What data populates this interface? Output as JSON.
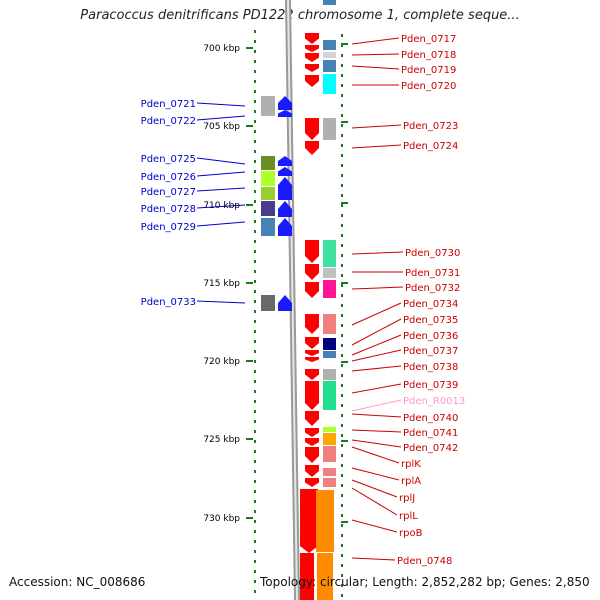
{
  "title": "Paracoccus denitrificans PD1222 chromosome 1, complete seque...",
  "accession": "Accession: NC_008686",
  "topology": "Topology: circular; Length: 2,852,282 bp; Genes: 2,850",
  "colors": {
    "left_label": "#0000cc",
    "right_label": "#cc0000",
    "rna_label": "#ff99cc",
    "forward_gene": "#1a1aff",
    "reverse_gene": "#ff0000",
    "tick": "#1a7a1a"
  },
  "kbp_ticks": [
    "700 kbp",
    "705 kbp",
    "710 kbp",
    "715 kbp",
    "720 kbp",
    "725 kbp",
    "730 kbp"
  ],
  "left_genes": [
    {
      "name": "Pden_0721",
      "color": "#b0b0b0"
    },
    {
      "name": "Pden_0722",
      "color": "#b0b0b0"
    },
    {
      "name": "Pden_0725",
      "color": "#6b8e23"
    },
    {
      "name": "Pden_0726",
      "color": "#adff2f"
    },
    {
      "name": "Pden_0727",
      "color": "#9acd32"
    },
    {
      "name": "Pden_0728",
      "color": "#483d8b"
    },
    {
      "name": "Pden_0729",
      "color": "#4682b4"
    },
    {
      "name": "Pden_0733",
      "color": "#696969"
    }
  ],
  "right_genes": [
    {
      "name": "Pden_0717",
      "color": "#4682b4"
    },
    {
      "name": "Pden_0718",
      "color": "#d3d3d3"
    },
    {
      "name": "Pden_0719",
      "color": "#4682b4"
    },
    {
      "name": "Pden_0720",
      "color": "#00ffff"
    },
    {
      "name": "Pden_0723",
      "color": "#b0b0b0"
    },
    {
      "name": "Pden_0724",
      "color": "#ff0000"
    },
    {
      "name": "Pden_0730",
      "color": "#40e0a0"
    },
    {
      "name": "Pden_0731",
      "color": "#c0c0c0"
    },
    {
      "name": "Pden_0732",
      "color": "#ff1493"
    },
    {
      "name": "Pden_0734",
      "color": "#f08080"
    },
    {
      "name": "Pden_0735",
      "color": "#f08080"
    },
    {
      "name": "Pden_0736",
      "color": "#000080"
    },
    {
      "name": "Pden_0737",
      "color": "#4682b4"
    },
    {
      "name": "Pden_0738",
      "color": "#b0b0b0"
    },
    {
      "name": "Pden_0739",
      "color": "#20e090"
    },
    {
      "name": "Pden_R0013",
      "color": "#ff99cc"
    },
    {
      "name": "Pden_0740",
      "color": "#f08080"
    },
    {
      "name": "Pden_0741",
      "color": "#adff2f"
    },
    {
      "name": "Pden_0742",
      "color": "#ffa500"
    },
    {
      "name": "rplK",
      "color": "#f08080"
    },
    {
      "name": "rplA",
      "color": "#f08080"
    },
    {
      "name": "rplJ",
      "color": "#f08080"
    },
    {
      "name": "rplL",
      "color": "#f08080"
    },
    {
      "name": "rpoB",
      "color": "#ff8c00"
    },
    {
      "name": "Pden_0748",
      "color": "#ff8c00"
    }
  ]
}
